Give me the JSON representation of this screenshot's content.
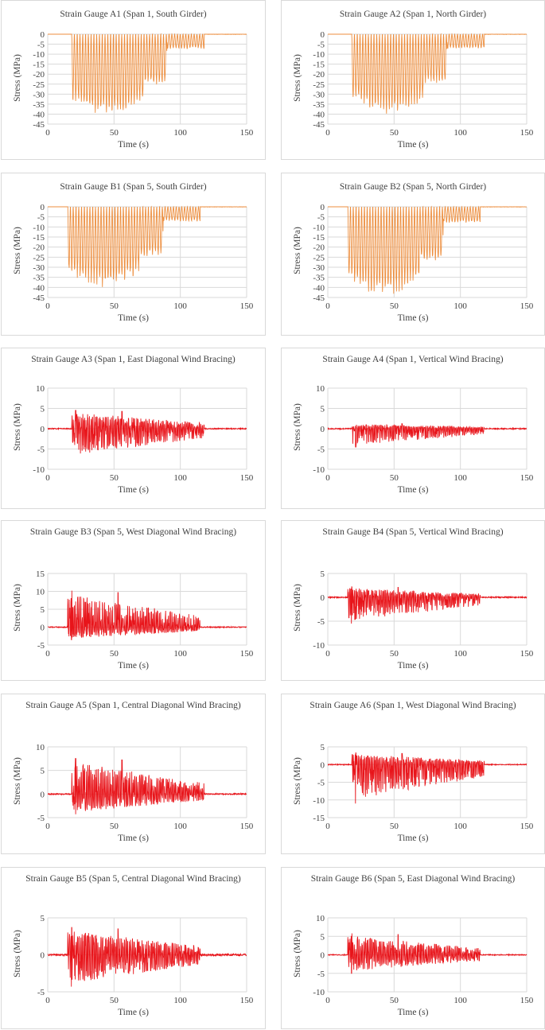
{
  "colors": {
    "orange": "#ED8E3E",
    "red": "#E8141A",
    "grid": "#d9d9d9"
  },
  "chart_data": [
    {
      "type": "line",
      "title": "Strain Gauge A1 (Span 1, South Girder)",
      "xlabel": "Time (s)",
      "ylabel": "Stress (MPa)",
      "xlim": [
        0,
        150
      ],
      "ylim": [
        -45,
        0
      ],
      "yticks": [
        0,
        -5,
        -10,
        -15,
        -20,
        -25,
        -30,
        -35,
        -40,
        -45
      ],
      "xticks": [
        0,
        50,
        100,
        150
      ],
      "color": "orange",
      "grid": true,
      "series": [
        {
          "values": {
            "active_range": [
              18,
              118
            ],
            "min_stress": -41,
            "max_stress": 0
          }
        }
      ]
    },
    {
      "type": "line",
      "title": "Strain Gauge A2 (Span 1, North Girder)",
      "xlabel": "Time (s)",
      "ylabel": "Stress (MPa)",
      "xlim": [
        0,
        150
      ],
      "ylim": [
        -45,
        0
      ],
      "yticks": [
        0,
        -5,
        -10,
        -15,
        -20,
        -25,
        -30,
        -35,
        -40,
        -45
      ],
      "xticks": [
        0,
        50,
        100,
        150
      ],
      "color": "orange",
      "grid": true,
      "series": [
        {
          "values": {
            "active_range": [
              18,
              118
            ],
            "min_stress": -40,
            "max_stress": 0
          }
        }
      ]
    },
    {
      "type": "line",
      "title": "Strain Gauge B1 (Span 5, South Girder)",
      "xlabel": "Time (s)",
      "ylabel": "Stress (MPa)",
      "xlim": [
        0,
        150
      ],
      "ylim": [
        -45,
        0
      ],
      "yticks": [
        0,
        -5,
        -10,
        -15,
        -20,
        -25,
        -30,
        -35,
        -40,
        -45
      ],
      "xticks": [
        0,
        50,
        100,
        150
      ],
      "color": "orange",
      "grid": true,
      "series": [
        {
          "values": {
            "active_range": [
              15,
              115
            ],
            "min_stress": -40,
            "max_stress": 0
          }
        }
      ]
    },
    {
      "type": "line",
      "title": "Strain Gauge B2 (Span 5, North Girder)",
      "xlabel": "Time (s)",
      "ylabel": "Stress (MPa)",
      "xlim": [
        0,
        150
      ],
      "ylim": [
        -45,
        0
      ],
      "yticks": [
        0,
        -5,
        -10,
        -15,
        -20,
        -25,
        -30,
        -35,
        -40,
        -45
      ],
      "xticks": [
        0,
        50,
        100,
        150
      ],
      "color": "orange",
      "grid": true,
      "series": [
        {
          "values": {
            "active_range": [
              15,
              115
            ],
            "min_stress": -44,
            "max_stress": 0
          }
        }
      ]
    },
    {
      "type": "line",
      "title": "Strain Gauge A3 (Span 1, East Diagonal Wind Bracing)",
      "xlabel": "Time (s)",
      "ylabel": "Stress (MPa)",
      "xlim": [
        0,
        150
      ],
      "ylim": [
        -10,
        10
      ],
      "yticks": [
        10,
        5,
        0,
        -5,
        -10
      ],
      "xticks": [
        0,
        50,
        100,
        150
      ],
      "color": "red",
      "grid": true,
      "series": [
        {
          "values": {
            "active_range": [
              18,
              118
            ],
            "min_stress": -7.3,
            "max_stress": 4.5
          }
        }
      ]
    },
    {
      "type": "line",
      "title": "Strain Gauge A4 (Span 1, Vertical Wind Bracing)",
      "xlabel": "Time (s)",
      "ylabel": "Stress (MPa)",
      "xlim": [
        0,
        150
      ],
      "ylim": [
        -10,
        10
      ],
      "yticks": [
        10,
        5,
        0,
        -5,
        -10
      ],
      "xticks": [
        0,
        50,
        100,
        150
      ],
      "color": "red",
      "grid": true,
      "series": [
        {
          "values": {
            "active_range": [
              18,
              118
            ],
            "min_stress": -4.5,
            "max_stress": 1.3
          }
        }
      ]
    },
    {
      "type": "line",
      "title": "Strain Gauge B3 (Span 5, West Diagonal Wind Bracing)",
      "xlabel": "Time (s)",
      "ylabel": "Stress (MPa)",
      "xlim": [
        0,
        150
      ],
      "ylim": [
        -5,
        15
      ],
      "yticks": [
        15,
        10,
        5,
        0,
        -5
      ],
      "xticks": [
        0,
        50,
        100,
        150
      ],
      "color": "red",
      "grid": true,
      "series": [
        {
          "values": {
            "active_range": [
              15,
              115
            ],
            "min_stress": -3.5,
            "max_stress": 10.2
          }
        }
      ]
    },
    {
      "type": "line",
      "title": "Strain Gauge B4 (Span 5, Vertical Wind Bracing)",
      "xlabel": "Time (s)",
      "ylabel": "Stress (MPa)",
      "xlim": [
        0,
        150
      ],
      "ylim": [
        -10,
        5
      ],
      "yticks": [
        5,
        0,
        -5,
        -10
      ],
      "xticks": [
        0,
        50,
        100,
        150
      ],
      "color": "red",
      "grid": true,
      "series": [
        {
          "values": {
            "active_range": [
              15,
              115
            ],
            "min_stress": -5.5,
            "max_stress": 2.2
          }
        }
      ]
    },
    {
      "type": "line",
      "title": "Strain Gauge A5 (Span 1, Central Diagonal Wind Bracing)",
      "xlabel": "Time (s)",
      "ylabel": "Stress (MPa)",
      "xlim": [
        0,
        150
      ],
      "ylim": [
        -5,
        10
      ],
      "yticks": [
        10,
        5,
        0,
        -5
      ],
      "xticks": [
        0,
        50,
        100,
        150
      ],
      "color": "red",
      "grid": true,
      "series": [
        {
          "values": {
            "active_range": [
              18,
              118
            ],
            "min_stress": -4.3,
            "max_stress": 7.6
          }
        }
      ]
    },
    {
      "type": "line",
      "title": "Strain Gauge A6 (Span 1, West Diagonal Wind Bracing)",
      "xlabel": "Time (s)",
      "ylabel": "Stress (MPa)",
      "xlim": [
        0,
        150
      ],
      "ylim": [
        -15,
        5
      ],
      "yticks": [
        5,
        0,
        -5,
        -10,
        -15
      ],
      "xticks": [
        0,
        50,
        100,
        150
      ],
      "color": "red",
      "grid": true,
      "series": [
        {
          "values": {
            "active_range": [
              18,
              118
            ],
            "min_stress": -11,
            "max_stress": 3.3
          }
        }
      ]
    },
    {
      "type": "line",
      "title": "Strain Gauge B5 (Span 5, Central Diagonal Wind Bracing)",
      "xlabel": "Time (s)",
      "ylabel": "Stress (MPa)",
      "xlim": [
        0,
        150
      ],
      "ylim": [
        -5,
        5
      ],
      "yticks": [
        5,
        0,
        -5
      ],
      "xticks": [
        0,
        50,
        100,
        150
      ],
      "color": "red",
      "grid": true,
      "series": [
        {
          "values": {
            "active_range": [
              15,
              115
            ],
            "min_stress": -4.3,
            "max_stress": 3.7
          }
        }
      ]
    },
    {
      "type": "line",
      "title": "Strain Gauge B6 (Span 5, East Diagonal Wind Bracing)",
      "xlabel": "Time (s)",
      "ylabel": "Stress (MPa)",
      "xlim": [
        0,
        150
      ],
      "ylim": [
        -10,
        10
      ],
      "yticks": [
        10,
        5,
        0,
        -5,
        -10
      ],
      "xticks": [
        0,
        50,
        100,
        150
      ],
      "color": "red",
      "grid": true,
      "series": [
        {
          "values": {
            "active_range": [
              15,
              115
            ],
            "min_stress": -5,
            "max_stress": 5.8
          }
        }
      ]
    }
  ]
}
